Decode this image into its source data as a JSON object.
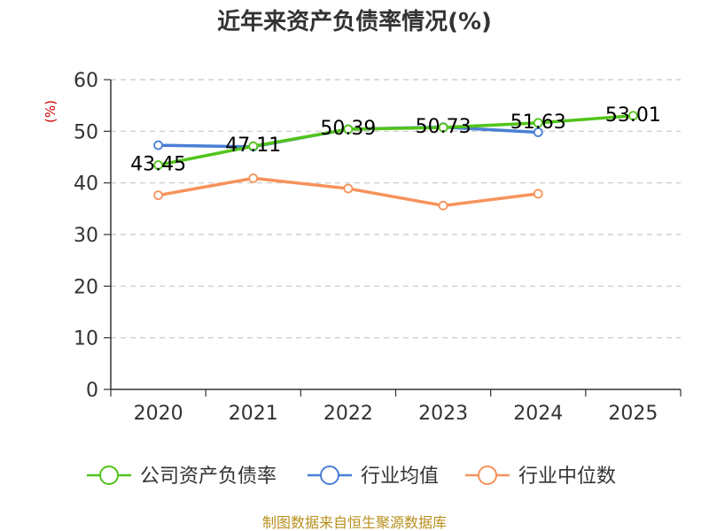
{
  "chart_data": {
    "type": "line",
    "title": "近年来资产负债率情况(%)",
    "ylabel": "(%)",
    "xlabel": "",
    "ylim": [
      0,
      60
    ],
    "yticks": [
      0,
      10,
      20,
      30,
      40,
      50,
      60
    ],
    "categories": [
      "2020",
      "2021",
      "2022",
      "2023",
      "2024",
      "2025"
    ],
    "grid": "horizontal-dashed",
    "legend_position": "bottom",
    "series": [
      {
        "name": "公司资产负债率",
        "color": "#52c41a",
        "values": [
          43.45,
          47.11,
          50.39,
          50.73,
          51.63,
          53.01
        ],
        "labels": [
          "43.45",
          "47.11",
          "50.39",
          "50.73",
          "51.63",
          "53.01"
        ]
      },
      {
        "name": "行业均值",
        "color": "#4a7fd6",
        "values": [
          47.3,
          47.0,
          50.4,
          50.8,
          49.8,
          null
        ]
      },
      {
        "name": "行业中位数",
        "color": "#f7925a",
        "values": [
          37.6,
          40.9,
          38.9,
          35.6,
          37.9,
          null
        ]
      }
    ]
  },
  "source": "制图数据来自恒生聚源数据库"
}
